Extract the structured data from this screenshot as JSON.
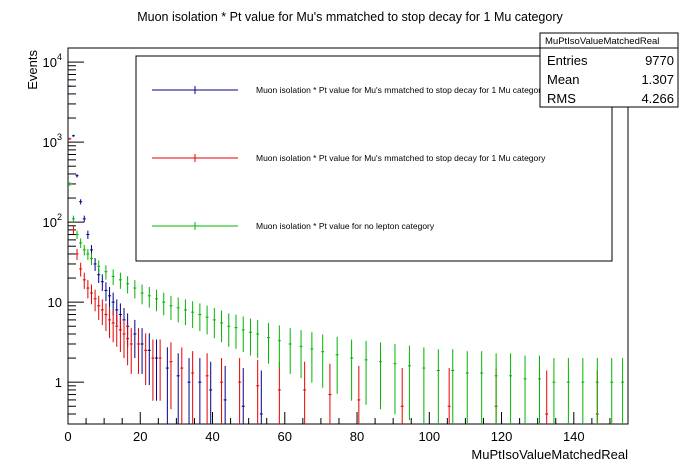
{
  "chart_data": {
    "type": "scatter",
    "title": "Muon isolation * Pt value for Mu's mmatched to stop decay for 1 Mu category",
    "xlabel": "MuPtIsoValueMatchedReal",
    "ylabel": "Events",
    "xlim": [
      0,
      155
    ],
    "ylim": [
      0.3,
      15000
    ],
    "yscale": "log",
    "x_ticks": [
      "0",
      "20",
      "40",
      "60",
      "80",
      "100",
      "120",
      "140"
    ],
    "y_ticks": [
      "1",
      "10",
      "10^2",
      "10^3",
      "10^4"
    ],
    "legend_position": "top-right",
    "stats_box": {
      "name": "MuPtIsoValueMatchedReal",
      "rows": [
        {
          "label": "Entries",
          "value": "9770"
        },
        {
          "label": "Mean",
          "value": "1.307"
        },
        {
          "label": "RMS",
          "value": "4.266"
        }
      ]
    },
    "series": [
      {
        "name": "Muon isolation * Pt value for Mu's mmatched to stop decay for 1 Mu category",
        "color": "#00008b",
        "x": [
          0.5,
          1.5,
          2.5,
          3.5,
          4.5,
          5.5,
          6.5,
          7.5,
          8.5,
          9.5,
          10.5,
          11.5,
          12.5,
          13.5,
          14.5,
          15.5,
          16.5,
          18.5,
          20.5,
          22.5,
          24.5,
          27.5,
          30.5,
          33.5,
          36.5,
          39.5,
          43.5,
          48.5,
          53.5
        ],
        "values": [
          5000,
          1200,
          380,
          180,
          110,
          70,
          45,
          30,
          22,
          18,
          14,
          12,
          10,
          8,
          7,
          6,
          5,
          4,
          3,
          2.5,
          2,
          1.5,
          1.2,
          1,
          1,
          0.8,
          0.6,
          0.5,
          0.4
        ]
      },
      {
        "name": "Muon isolation * Pt value for Mu's mmatched to stop decay for 1 Mu category",
        "color": "#e60000",
        "x": [
          0.5,
          1.5,
          2.5,
          3.5,
          4.5,
          5.5,
          6.5,
          7.5,
          8.5,
          9.5,
          10.5,
          11.5,
          12.5,
          13.5,
          14.5,
          15.5,
          16.5,
          17.5,
          19.5,
          21.5,
          23.5,
          25.5,
          28.5,
          31.5,
          34.5,
          38.5,
          42.5,
          47.5,
          52.5,
          58.5,
          65.5,
          72.5,
          80.5,
          92.5,
          105.5,
          118.5,
          132.5,
          146.5
        ],
        "values": [
          1100,
          80,
          40,
          26,
          19,
          15,
          13,
          11,
          9,
          8,
          7,
          6,
          5.5,
          5,
          4.5,
          4,
          3.5,
          3,
          3,
          2.5,
          2,
          2,
          1.8,
          1.5,
          1.3,
          1.2,
          1,
          1,
          0.9,
          0.8,
          0.8,
          0.7,
          0.6,
          0.5,
          0.5,
          0.5,
          0.4,
          0.4
        ]
      },
      {
        "name": "Muon isolation * Pt value for no lepton category",
        "color": "#00b400",
        "x": [
          0.5,
          1.5,
          2.5,
          3.5,
          4.5,
          5.5,
          6.5,
          8.5,
          10.5,
          12.5,
          14.5,
          16.5,
          18.5,
          20.5,
          22.5,
          24.5,
          26.5,
          28.5,
          30.5,
          32.5,
          34.5,
          36.5,
          38.5,
          40.5,
          42.5,
          44.5,
          46.5,
          48.5,
          50.5,
          52.5,
          55.5,
          58.5,
          61.5,
          64.5,
          67.5,
          70.5,
          74.5,
          78.5,
          82.5,
          86.5,
          90.5,
          94.5,
          98.5,
          102.5,
          106.5,
          110.5,
          114.5,
          118.5,
          122.5,
          126.5,
          130.5,
          134.5,
          138.5,
          142.5,
          146.5,
          150.5,
          153.5
        ],
        "values": [
          300,
          110,
          70,
          55,
          45,
          40,
          35,
          28,
          24,
          21,
          19,
          17,
          15,
          13,
          12,
          11,
          10,
          9,
          8.5,
          8,
          7.5,
          7,
          6.5,
          6,
          5.5,
          5,
          4.8,
          4.5,
          4.2,
          4,
          3.6,
          3.3,
          3,
          2.8,
          2.6,
          2.4,
          2.2,
          2,
          1.9,
          1.8,
          1.7,
          1.6,
          1.5,
          1.4,
          1.4,
          1.3,
          1.3,
          1.2,
          1.2,
          1.1,
          1.1,
          1,
          1,
          1,
          1,
          1,
          1
        ]
      }
    ]
  }
}
